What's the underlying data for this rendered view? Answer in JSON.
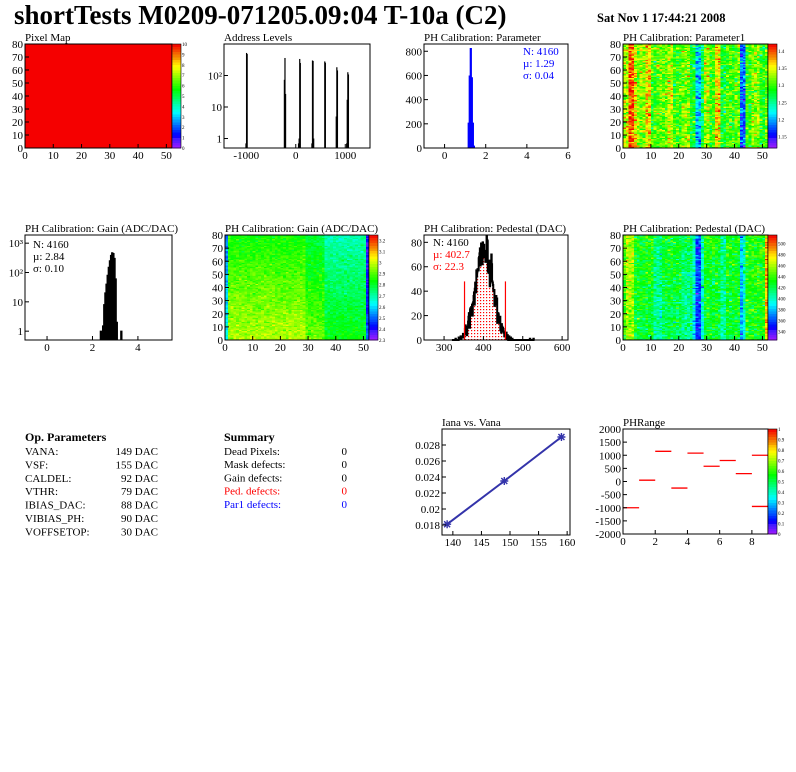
{
  "header": {
    "title": "shortTests M0209-071205.09:04 T-10a (C2)",
    "date": "Sat Nov  1 17:44:21 2008"
  },
  "op_parameters": {
    "heading": "Op. Parameters",
    "rows": [
      {
        "name": "VANA:",
        "value": "149 DAC"
      },
      {
        "name": "VSF:",
        "value": "155 DAC"
      },
      {
        "name": "CALDEL:",
        "value": "92 DAC"
      },
      {
        "name": "VTHR:",
        "value": "79 DAC"
      },
      {
        "name": "IBIAS_DAC:",
        "value": "88 DAC"
      },
      {
        "name": "VIBIAS_PH:",
        "value": "90 DAC"
      },
      {
        "name": "VOFFSETOP:",
        "value": "30 DAC"
      }
    ]
  },
  "summary": {
    "heading": "Summary",
    "rows": [
      {
        "name": "Dead Pixels:",
        "value": "0",
        "color": "#000000"
      },
      {
        "name": "Mask defects:",
        "value": "0",
        "color": "#000000"
      },
      {
        "name": "Gain defects:",
        "value": "0",
        "color": "#000000"
      },
      {
        "name": "Ped. defects:",
        "value": "0",
        "color": "#ff0000"
      },
      {
        "name": "Par1 defects:",
        "value": "0",
        "color": "#0000ff"
      }
    ]
  },
  "chart_data": [
    {
      "type": "heatmap",
      "title": "Pixel Map",
      "xlim": [
        0,
        52
      ],
      "ylim": [
        0,
        80
      ],
      "xticks": [
        0,
        10,
        20,
        30,
        40,
        50
      ],
      "yticks": [
        0,
        10,
        20,
        30,
        40,
        50,
        60,
        70,
        80
      ],
      "zlim": [
        0,
        10
      ],
      "zticks": [
        0,
        1,
        2,
        3,
        4,
        5,
        6,
        7,
        8,
        9,
        10
      ],
      "uniform_value": 10
    },
    {
      "type": "bar",
      "title": "Address Levels",
      "xlim": [
        -1450,
        1500
      ],
      "ylim": [
        0.5,
        1000
      ],
      "ylog": true,
      "xticks": [
        -1000,
        0,
        1000
      ],
      "yticks": [
        1,
        10,
        100
      ],
      "ytick_labels": [
        "1",
        "10",
        "10²"
      ],
      "bin_width": 12,
      "bins": [
        [
          -1012,
          0.7
        ],
        [
          -1000,
          520
        ],
        [
          -988,
          480
        ],
        [
          -236,
          73
        ],
        [
          -224,
          360
        ],
        [
          -212,
          26
        ],
        [
          50,
          0.7
        ],
        [
          62,
          1
        ],
        [
          74,
          335
        ],
        [
          86,
          250
        ],
        [
          320,
          0.7
        ],
        [
          332,
          300
        ],
        [
          344,
          290
        ],
        [
          356,
          1
        ],
        [
          580,
          280
        ],
        [
          592,
          255
        ],
        [
          812,
          5
        ],
        [
          824,
          183
        ],
        [
          836,
          145
        ],
        [
          1022,
          0.7
        ],
        [
          1034,
          17
        ],
        [
          1046,
          127
        ],
        [
          1058,
          108
        ]
      ],
      "color": "#000000"
    },
    {
      "type": "bar",
      "title": "PH Calibration: Parameter",
      "xlim": [
        -1,
        6
      ],
      "ylim": [
        0,
        860
      ],
      "xticks": [
        0,
        2,
        4,
        6
      ],
      "yticks": [
        0,
        200,
        400,
        600,
        800
      ],
      "bin_width": 0.05,
      "bins": [
        [
          1.175,
          205
        ],
        [
          1.225,
          595
        ],
        [
          1.275,
          822
        ],
        [
          1.325,
          580
        ],
        [
          1.375,
          205
        ],
        [
          1.425,
          15
        ]
      ],
      "color": "#0000ff",
      "stats": {
        "n": "N: 4160",
        "mu": "µ: 1.29",
        "sigma": "σ: 0.04"
      }
    },
    {
      "type": "heatmap",
      "title": "PH Calibration: Parameter1",
      "xlim": [
        0,
        52
      ],
      "ylim": [
        0,
        80
      ],
      "xticks": [
        0,
        10,
        20,
        30,
        40,
        50
      ],
      "yticks": [
        0,
        10,
        20,
        30,
        40,
        50,
        60,
        70,
        80
      ],
      "zlim": [
        1.117,
        1.42
      ],
      "zticks": [
        1.15,
        1.2,
        1.25,
        1.3,
        1.35,
        1.4
      ],
      "column_means": [
        1.33,
        1.33,
        1.4,
        1.4,
        1.35,
        1.32,
        1.32,
        1.32,
        1.36,
        1.36,
        1.3,
        1.3,
        1.31,
        1.31,
        1.31,
        1.31,
        1.34,
        1.34,
        1.3,
        1.3,
        1.3,
        1.32,
        1.32,
        1.32,
        1.28,
        1.28,
        1.21,
        1.21,
        1.27,
        1.33,
        1.33,
        1.3,
        1.3,
        1.36,
        1.36,
        1.28,
        1.28,
        1.3,
        1.3,
        1.3,
        1.31,
        1.31,
        1.18,
        1.18,
        1.3,
        1.3,
        1.32,
        1.32,
        1.32,
        1.29,
        1.29,
        1.31,
        1.31
      ],
      "row_slope": 0,
      "spread": 0.025
    },
    {
      "type": "bar",
      "title": "PH Calibration: Gain (ADC/DAC)",
      "xlim": [
        -0.97,
        5.5
      ],
      "ylim": [
        0.5,
        1900
      ],
      "ylog": true,
      "xticks": [
        0,
        2,
        4
      ],
      "yticks": [
        1,
        10,
        100,
        1000
      ],
      "ytick_labels": [
        "1",
        "10",
        "10²",
        "10³"
      ],
      "bin_width": 0.05,
      "outline_only": true,
      "bins": [
        [
          2.37,
          1
        ],
        [
          2.47,
          1.5
        ],
        [
          2.52,
          8
        ],
        [
          2.57,
          20
        ],
        [
          2.62,
          40
        ],
        [
          2.67,
          80
        ],
        [
          2.72,
          150
        ],
        [
          2.77,
          250
        ],
        [
          2.82,
          380
        ],
        [
          2.87,
          470
        ],
        [
          2.92,
          440
        ],
        [
          2.97,
          300
        ],
        [
          3.02,
          60
        ],
        [
          3.07,
          2
        ],
        [
          3.27,
          1
        ]
      ],
      "color": "#000000",
      "stats": {
        "n": "N: 4160",
        "mu": "µ: 2.84",
        "sigma": "σ: 0.10"
      }
    },
    {
      "type": "heatmap",
      "title": "PH Calibration: Gain (ADC/DAC)",
      "xlim": [
        0,
        52
      ],
      "ylim": [
        0,
        80
      ],
      "xticks": [
        0,
        10,
        20,
        30,
        40,
        50
      ],
      "yticks": [
        0,
        10,
        20,
        30,
        40,
        50,
        60,
        70,
        80
      ],
      "zlim": [
        2.3,
        3.25
      ],
      "zticks": [
        2.3,
        2.4,
        2.5,
        2.6,
        2.7,
        2.8,
        2.9,
        3,
        3.1,
        3.2
      ],
      "column_means": [
        2.65,
        2.98,
        2.98,
        2.98,
        2.98,
        2.98,
        2.98,
        2.98,
        2.98,
        2.98,
        2.98,
        2.98,
        2.98,
        2.98,
        2.98,
        2.98,
        2.98,
        2.98,
        2.98,
        2.98,
        2.98,
        2.98,
        2.98,
        2.98,
        2.98,
        2.98,
        2.98,
        2.98,
        2.98,
        2.92,
        2.92,
        2.92,
        2.92,
        2.92,
        2.92,
        2.92,
        2.83,
        2.83,
        2.83,
        2.83,
        2.83,
        2.83,
        2.83,
        2.83,
        2.83,
        2.83,
        2.83,
        2.83,
        2.83,
        2.83,
        2.83,
        2.5,
        2.55
      ],
      "row_slope": -0.0017,
      "spread": 0.03
    },
    {
      "type": "bar",
      "title": "PH Calibration: Pedestal (DAC)",
      "xlim": [
        249,
        615
      ],
      "ylim": [
        0,
        86
      ],
      "xticks": [
        300,
        400,
        500,
        600
      ],
      "yticks": [
        0,
        20,
        40,
        60,
        80
      ],
      "entries": 4160,
      "mean": 402.7,
      "rms": 22.3,
      "bin_width": 1,
      "cut_low": 352,
      "cut_high": 456,
      "color": "#000000",
      "cut_color": "#ff0000",
      "stats": {
        "n": "N: 4160",
        "mu": "µ: 402.7",
        "sigma": "σ: 22.3"
      }
    },
    {
      "type": "heatmap",
      "title": "PH Calibration: Pedestal (DAC)",
      "xlim": [
        0,
        52
      ],
      "ylim": [
        0,
        80
      ],
      "xticks": [
        0,
        10,
        20,
        30,
        40,
        50
      ],
      "yticks": [
        0,
        10,
        20,
        30,
        40,
        50,
        60,
        70,
        80
      ],
      "zlim": [
        325,
        515
      ],
      "zticks": [
        340,
        360,
        380,
        400,
        420,
        440,
        460,
        480,
        500
      ],
      "column_means": [
        440,
        455,
        455,
        455,
        425,
        425,
        425,
        425,
        425,
        425,
        425,
        405,
        405,
        405,
        420,
        420,
        420,
        420,
        420,
        420,
        420,
        410,
        410,
        410,
        410,
        390,
        355,
        355,
        395,
        425,
        425,
        425,
        425,
        425,
        425,
        405,
        405,
        425,
        425,
        425,
        425,
        425,
        375,
        395,
        430,
        430,
        430,
        430,
        430,
        430,
        430,
        480,
        470
      ],
      "row_slope": 0.1,
      "spread": 12
    },
    {
      "type": "line",
      "title": "Iana vs. Vana",
      "xlim": [
        138.1,
        160.5
      ],
      "ylim": [
        0.01675,
        0.03
      ],
      "xticks": [
        140,
        145,
        150,
        155,
        160
      ],
      "yticks": [
        0.018,
        0.02,
        0.022,
        0.024,
        0.026,
        0.028
      ],
      "x": [
        139,
        149,
        159
      ],
      "y": [
        0.0181,
        0.0235,
        0.029
      ],
      "color": "#3333aa"
    },
    {
      "type": "heatmap",
      "title": "PHRange",
      "xlim": [
        0,
        9
      ],
      "ylim": [
        -2000,
        2000
      ],
      "xticks": [
        0,
        2,
        4,
        6,
        8
      ],
      "yticks": [
        2000,
        1500,
        1000,
        500,
        0,
        -500,
        -1000,
        -1500,
        -2000
      ],
      "zlim": [
        0,
        1
      ],
      "zticks": [
        0,
        0.1,
        0.2,
        0.3,
        0.4,
        0.5,
        0.6,
        0.7,
        0.8,
        0.9,
        1
      ],
      "segments": [
        [
          0,
          -1000
        ],
        [
          1,
          50
        ],
        [
          2,
          1150
        ],
        [
          3,
          -250
        ],
        [
          4,
          1080
        ],
        [
          5,
          580
        ],
        [
          6,
          800
        ],
        [
          7,
          300
        ],
        [
          8,
          1000
        ],
        [
          8,
          -950
        ]
      ],
      "color": "#ff0000"
    }
  ]
}
